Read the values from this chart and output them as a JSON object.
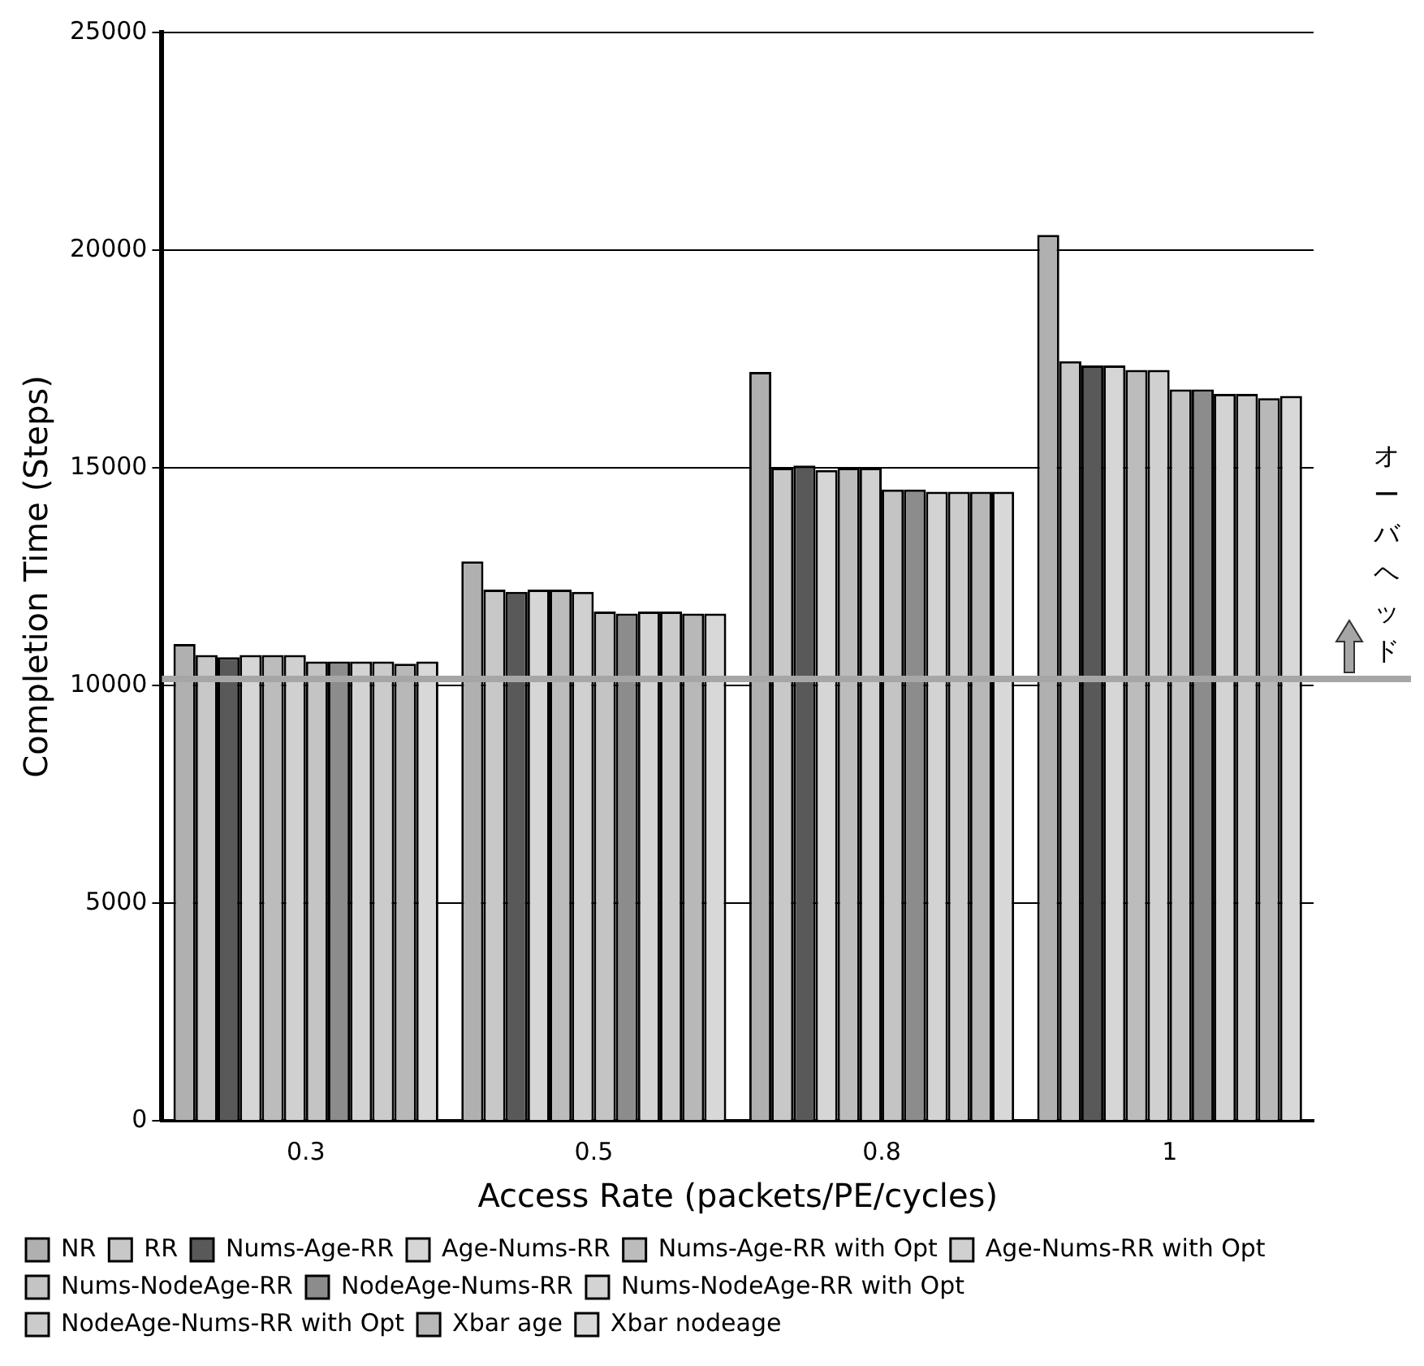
{
  "chart_data": {
    "type": "bar",
    "xlabel": "Access Rate (packets/PE/cycles)",
    "ylabel": "Completion Time (Steps)",
    "categories": [
      "0.3",
      "0.5",
      "0.8",
      "1"
    ],
    "series": [
      {
        "name": "NR",
        "color": "#b0b0b0",
        "values": [
          10950,
          12850,
          17200,
          20350
        ]
      },
      {
        "name": "RR",
        "color": "#c8c8c8",
        "values": [
          10700,
          12200,
          15000,
          17450
        ]
      },
      {
        "name": "Nums-Age-RR",
        "color": "#595959",
        "values": [
          10650,
          12150,
          15050,
          17350
        ]
      },
      {
        "name": "Age-Nums-RR",
        "color": "#d6d6d6",
        "values": [
          10700,
          12200,
          14950,
          17350
        ]
      },
      {
        "name": "Nums-Age-RR with Opt",
        "color": "#bcbcbc",
        "values": [
          10700,
          12200,
          15000,
          17250
        ]
      },
      {
        "name": "Age-Nums-RR with Opt",
        "color": "#d0d0d0",
        "values": [
          10700,
          12150,
          15000,
          17250
        ]
      },
      {
        "name": "Nums-NodeAge-RR",
        "color": "#c4c4c4",
        "values": [
          10550,
          11700,
          14500,
          16800
        ]
      },
      {
        "name": "NodeAge-Nums-RR",
        "color": "#8c8c8c",
        "values": [
          10550,
          11650,
          14500,
          16800
        ]
      },
      {
        "name": "Nums-NodeAge-RR with Opt",
        "color": "#d3d3d3",
        "values": [
          10550,
          11700,
          14450,
          16700
        ]
      },
      {
        "name": "NodeAge-Nums-RR with Opt",
        "color": "#cbcbcb",
        "values": [
          10550,
          11700,
          14450,
          16700
        ]
      },
      {
        "name": "Xbar age",
        "color": "#b8b8b8",
        "values": [
          10500,
          11650,
          14450,
          16600
        ]
      },
      {
        "name": "Xbar nodeage",
        "color": "#d8d8d8",
        "values": [
          10550,
          11650,
          14450,
          16650
        ]
      }
    ],
    "ylim": [
      0,
      25000
    ],
    "yticks": [
      0,
      5000,
      10000,
      15000,
      20000,
      25000
    ],
    "grid": "y",
    "legend": "bottom",
    "ref_lines": [
      {
        "axis": "y",
        "value": 10150,
        "label": "オーバヘッド",
        "color": "#a6a6a6"
      }
    ]
  }
}
